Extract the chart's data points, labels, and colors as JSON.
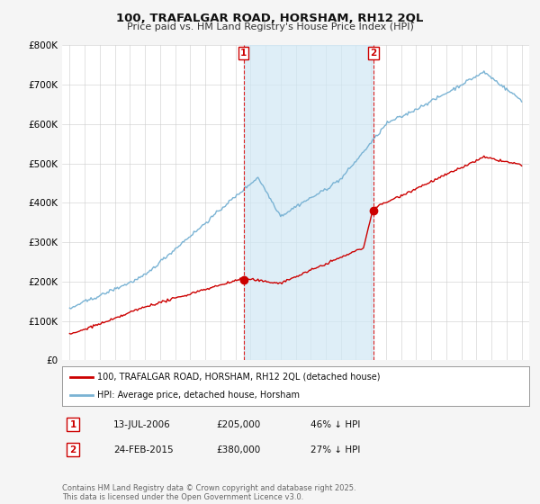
{
  "title": "100, TRAFALGAR ROAD, HORSHAM, RH12 2QL",
  "subtitle": "Price paid vs. HM Land Registry's House Price Index (HPI)",
  "background_color": "#f5f5f5",
  "plot_bg_color": "#ffffff",
  "hpi_color": "#7ab3d4",
  "price_color": "#cc0000",
  "shade_color": "#d0e8f5",
  "ylim": [
    0,
    800000
  ],
  "yticks": [
    0,
    100000,
    200000,
    300000,
    400000,
    500000,
    600000,
    700000,
    800000
  ],
  "ytick_labels": [
    "£0",
    "£100K",
    "£200K",
    "£300K",
    "£400K",
    "£500K",
    "£600K",
    "£700K",
    "£800K"
  ],
  "xlim_start": 1994.5,
  "xlim_end": 2025.5,
  "sale1_date": 2006.54,
  "sale1_price": 205000,
  "sale2_date": 2015.15,
  "sale2_price": 380000,
  "legend_line1": "100, TRAFALGAR ROAD, HORSHAM, RH12 2QL (detached house)",
  "legend_line2": "HPI: Average price, detached house, Horsham",
  "table_row1_num": "1",
  "table_row1_date": "13-JUL-2006",
  "table_row1_price": "£205,000",
  "table_row1_hpi": "46% ↓ HPI",
  "table_row2_num": "2",
  "table_row2_date": "24-FEB-2015",
  "table_row2_price": "£380,000",
  "table_row2_hpi": "27% ↓ HPI",
  "footer": "Contains HM Land Registry data © Crown copyright and database right 2025.\nThis data is licensed under the Open Government Licence v3.0."
}
